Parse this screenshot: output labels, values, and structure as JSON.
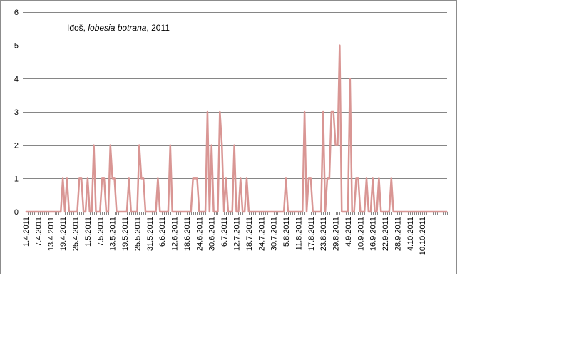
{
  "chart_data": {
    "type": "line",
    "title": {
      "prefix": "Iđoš, ",
      "species": "lobesia botrana",
      "suffix": ", 2011"
    },
    "xlabel": "",
    "ylabel": "",
    "ylim": [
      0,
      6
    ],
    "yticks": [
      0,
      1,
      2,
      3,
      4,
      5,
      6
    ],
    "grid": true,
    "legend": "none",
    "x_start": "1.4.2011",
    "x_end": "10.10.2011",
    "x_tick_labels": [
      "1.4.2011",
      "7.4.2011",
      "13.4.2011",
      "19.4.2011",
      "25.4.2011",
      "1.5.2011",
      "7.5.2011",
      "13.5.2011",
      "19.5.2011",
      "25.5.2011",
      "31.5.2011",
      "6.6.2011",
      "12.6.2011",
      "18.6.2011",
      "24.6.2011",
      "30.6.2011",
      "6.7.2011",
      "12.7.2011",
      "18.7.2011",
      "24.7.2011",
      "30.7.2011",
      "5.8.2011",
      "11.8.2011",
      "17.8.2011",
      "23.8.2011",
      "29.8.2011",
      "4.9.2011",
      "10.9.2011",
      "16.9.2011",
      "22.9.2011",
      "28.9.2011",
      "4.10.2011",
      "10.10.2011"
    ],
    "series": [
      {
        "name": "",
        "color": "#d99694",
        "values": [
          0,
          0,
          0,
          0,
          0,
          0,
          0,
          0,
          0,
          0,
          0,
          0,
          0,
          0,
          0,
          0,
          0,
          0,
          1,
          0,
          1,
          0,
          0,
          0,
          0,
          0,
          1,
          1,
          0,
          0,
          1,
          0,
          0,
          2,
          0,
          0,
          0,
          1,
          1,
          0,
          0,
          2,
          1,
          1,
          0,
          0,
          0,
          0,
          0,
          0,
          1,
          0,
          0,
          0,
          0,
          2,
          1,
          1,
          0,
          0,
          0,
          0,
          0,
          0,
          1,
          0,
          0,
          0,
          0,
          0,
          2,
          0,
          0,
          0,
          0,
          0,
          0,
          0,
          0,
          0,
          0,
          1,
          1,
          1,
          0,
          0,
          0,
          0,
          3,
          0,
          2,
          0,
          0,
          0,
          3,
          2,
          0,
          1,
          0,
          0,
          0,
          2,
          0,
          0,
          1,
          0,
          0,
          1,
          0,
          0,
          0,
          0,
          0,
          0,
          0,
          0,
          0,
          0,
          0,
          0,
          0,
          0,
          0,
          0,
          0,
          0,
          1,
          0,
          0,
          0,
          0,
          0,
          0,
          0,
          0,
          3,
          0,
          1,
          1,
          0,
          0,
          0,
          0,
          0,
          3,
          0,
          1,
          1,
          3,
          3,
          2,
          2,
          5,
          0,
          0,
          0,
          0,
          4,
          0,
          0,
          1,
          1,
          0,
          0,
          0,
          1,
          0,
          0,
          1,
          0,
          0,
          1,
          0,
          0,
          0,
          0,
          0,
          1,
          0,
          0,
          0,
          0,
          0,
          0,
          0,
          0,
          0,
          0,
          0,
          0,
          0,
          0,
          0,
          0,
          0,
          0,
          0,
          0,
          0,
          0,
          0,
          0,
          0,
          0,
          0
        ]
      }
    ]
  }
}
